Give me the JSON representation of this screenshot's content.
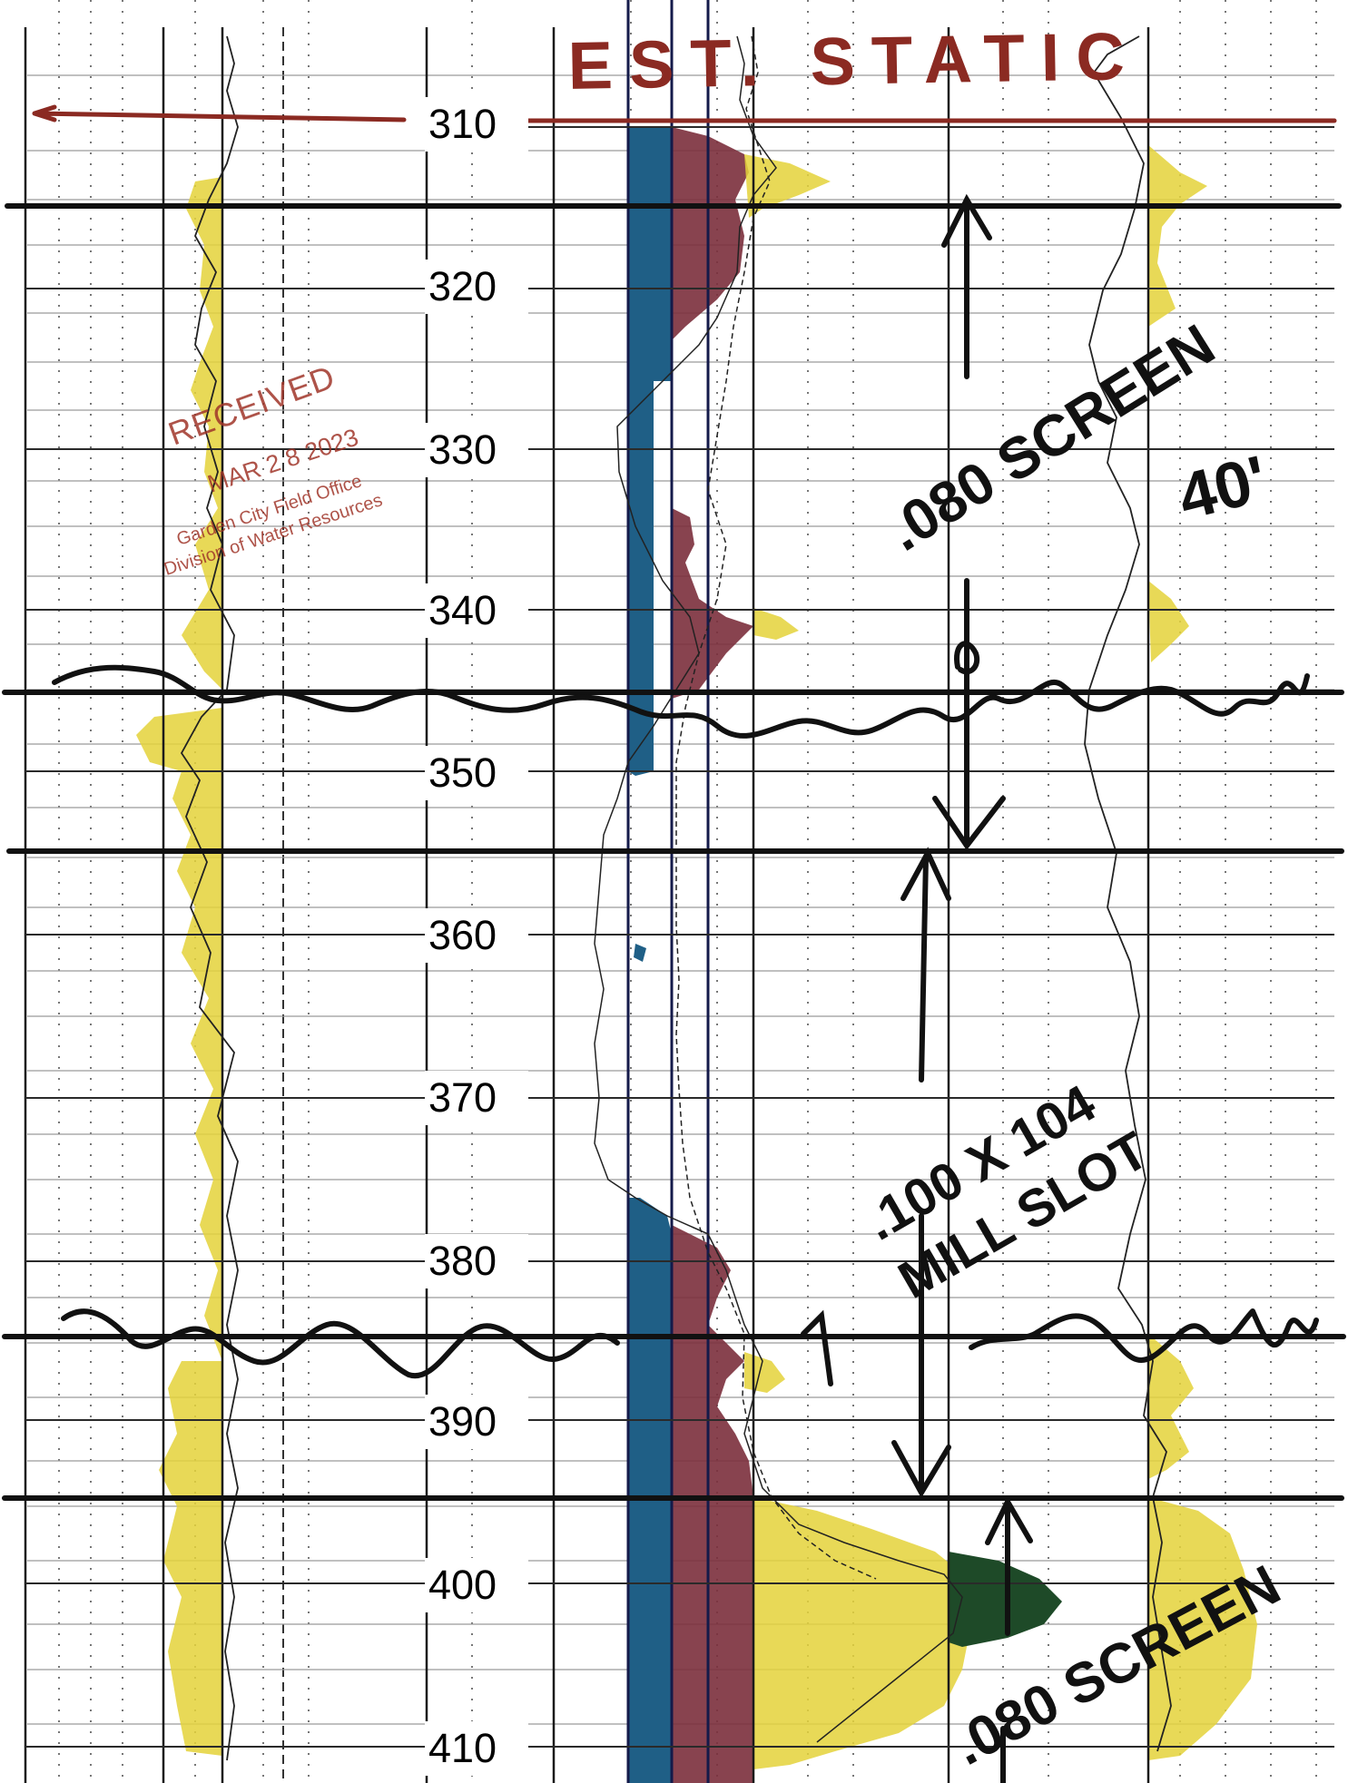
{
  "depth_labels": [
    "310",
    "320",
    "330",
    "340",
    "350",
    "360",
    "370",
    "380",
    "390",
    "400",
    "410"
  ],
  "annotations": {
    "static_title": "EST. STATIC",
    "screen_top": ".080 SCREEN",
    "screen_top_length": "40'",
    "mill_slot": ".100 X 104 MILL SLOT",
    "screen_bottom": ".080 SCREEN"
  },
  "stamp": {
    "heading": "RECEIVED",
    "date": "MAR 2 8 2023",
    "office": "Garden City Field Office",
    "division": "Division of Water Resources"
  },
  "colors": {
    "grid": "#1a1a1a",
    "yellow_fill": "#e4d23a",
    "blue_fill": "#1f5f86",
    "maroon_fill": "#7b2f3c",
    "green_fill": "#1e4a28",
    "annotation_red": "#8b2a22",
    "stamp_red": "#a0362a"
  }
}
